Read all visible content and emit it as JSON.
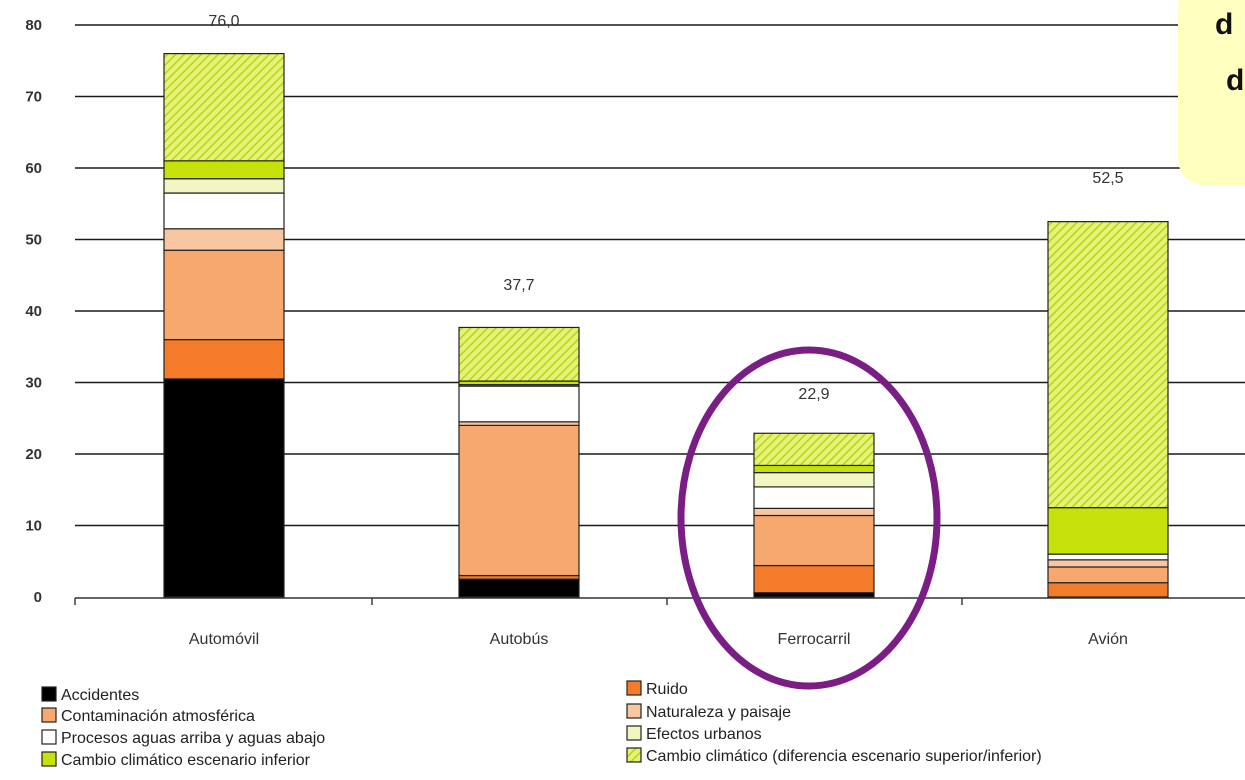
{
  "chart_data": {
    "type": "bar",
    "stacked": true,
    "categories": [
      "Automóvil",
      "Autobús",
      "Ferrocarril",
      "Avión"
    ],
    "totals": [
      "76,0",
      "37,7",
      "22,9",
      "52,5"
    ],
    "ylim": [
      0,
      80
    ],
    "yticks": [
      0,
      10,
      20,
      30,
      40,
      50,
      60,
      70,
      80
    ],
    "grid": true,
    "legend_position": "bottom",
    "series": [
      {
        "name": "Accidentes",
        "color": "#000000",
        "values": [
          30.5,
          2.5,
          0.6,
          0
        ]
      },
      {
        "name": "Ruido",
        "color": "#f47b29",
        "values": [
          5.5,
          0.5,
          3.8,
          2.0
        ]
      },
      {
        "name": "Contaminación atmosférica",
        "color": "#f7a86e",
        "values": [
          12.5,
          21.0,
          7.0,
          2.2
        ]
      },
      {
        "name": "Naturaleza y paisaje",
        "color": "#f8c6a0",
        "values": [
          3.0,
          0.5,
          1.0,
          1.0
        ]
      },
      {
        "name": "Procesos aguas arriba y aguas abajo",
        "color": "#ffffff",
        "values": [
          5.0,
          5.0,
          3.0,
          0.8
        ]
      },
      {
        "name": "Efectos urbanos",
        "color": "#f2f6c0",
        "values": [
          2.0,
          0.2,
          2.0,
          0
        ]
      },
      {
        "name": "Cambio climático escenario inferior",
        "color": "#c6e20a",
        "values": [
          2.5,
          0.5,
          1.0,
          6.5
        ]
      },
      {
        "name": "Cambio climático (diferencia escenario superior/inferior)",
        "color": "#d8ec5a",
        "pattern": "hatch",
        "values": [
          15.0,
          7.5,
          4.5,
          40.0
        ]
      }
    ],
    "highlight": {
      "category": "Ferrocarril",
      "shape": "ellipse",
      "color": "#7a1e86"
    }
  },
  "callout": {
    "lines": [
      "d",
      "d"
    ],
    "background": "#ffffc0"
  }
}
